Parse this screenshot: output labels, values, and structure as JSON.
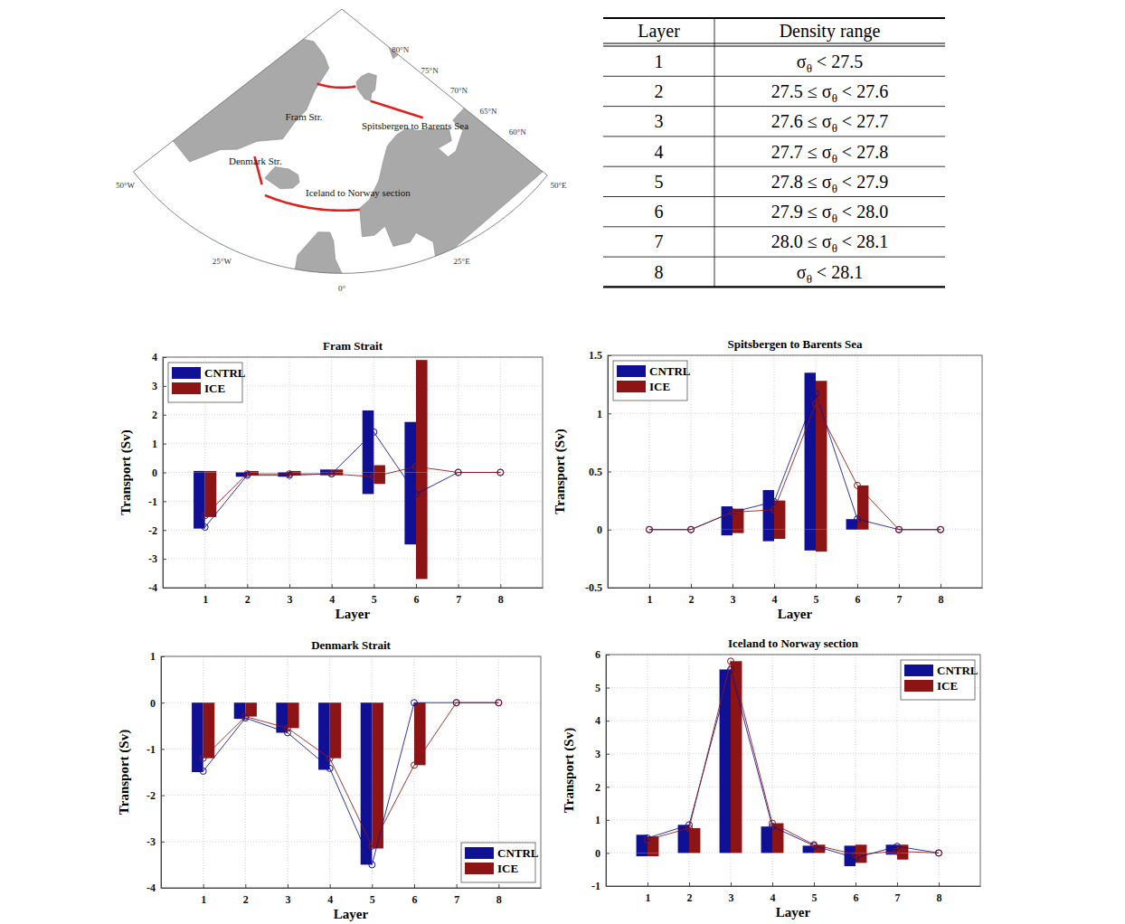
{
  "map": {
    "sections": [
      "Fram Str.",
      "Spitsbergen to Barents Sea",
      "Denmark Str.",
      "Iceland to Norway section"
    ],
    "lat_ticks": [
      {
        "value": 80,
        "label": "80°N"
      },
      {
        "value": 75,
        "label": "75°N"
      },
      {
        "value": 70,
        "label": "70°N"
      },
      {
        "value": 65,
        "label": "65°N"
      },
      {
        "value": 60,
        "label": "60°N"
      }
    ],
    "lon_ticks": [
      {
        "value": -50,
        "label": "50°W"
      },
      {
        "value": -25,
        "label": "25°W"
      },
      {
        "value": 0,
        "label": "0°"
      },
      {
        "value": 25,
        "label": "25°E"
      },
      {
        "value": 50,
        "label": "50°E"
      }
    ]
  },
  "table": {
    "header": [
      "Layer",
      "Density range"
    ],
    "rows": [
      [
        "1",
        "σθ < 27.5"
      ],
      [
        "2",
        "27.5 ≤ σθ < 27.6"
      ],
      [
        "3",
        "27.6 ≤ σθ < 27.7"
      ],
      [
        "4",
        "27.7 ≤ σθ < 27.8"
      ],
      [
        "5",
        "27.8 ≤ σθ < 27.9"
      ],
      [
        "6",
        "27.9 ≤ σθ < 28.0"
      ],
      [
        "7",
        "28.0 ≤ σθ < 28.1"
      ],
      [
        "8",
        "σθ < 28.1"
      ]
    ]
  },
  "chart_data": [
    {
      "type": "bar",
      "title": "Fram Strait",
      "xlabel": "Layer",
      "ylabel": "Transport (Sv)",
      "x": [
        1,
        2,
        3,
        4,
        5,
        6,
        7,
        8
      ],
      "xlim": [
        0,
        9
      ],
      "xticks": [
        1,
        2,
        3,
        4,
        5,
        6,
        7,
        8
      ],
      "ylim": [
        -4,
        4
      ],
      "yticks": [
        -4,
        -3,
        -2,
        -1,
        0,
        1,
        2,
        3,
        4
      ],
      "grid": true,
      "legend": "top-left",
      "series": [
        {
          "name": "CNTRL",
          "color": "#101094",
          "marker": "circle",
          "positive": [
            0.05,
            0,
            0,
            0.1,
            2.15,
            1.75,
            0,
            0
          ],
          "negative": [
            -1.95,
            -0.15,
            -0.15,
            -0.1,
            -0.75,
            -2.5,
            0,
            0
          ],
          "values": [
            -1.9,
            -0.1,
            -0.1,
            -0.05,
            1.4,
            -0.75,
            0,
            0
          ]
        },
        {
          "name": "ICE",
          "color": "#8c1414",
          "marker": "circle",
          "positive": [
            0.05,
            0.05,
            0.05,
            0.1,
            0.25,
            3.9,
            0,
            0
          ],
          "negative": [
            -1.55,
            -0.1,
            -0.1,
            -0.1,
            -0.4,
            -3.7,
            0,
            0
          ],
          "values": [
            -1.5,
            -0.05,
            -0.05,
            -0.05,
            -0.15,
            0.2,
            0,
            0
          ]
        }
      ]
    },
    {
      "type": "bar",
      "title": "Spitsbergen to Barents Sea",
      "xlabel": "Layer",
      "ylabel": "Transport (Sv)",
      "x": [
        1,
        2,
        3,
        4,
        5,
        6,
        7,
        8
      ],
      "xlim": [
        0,
        9
      ],
      "xticks": [
        1,
        2,
        3,
        4,
        5,
        6,
        7,
        8
      ],
      "ylim": [
        -0.5,
        1.5
      ],
      "yticks": [
        -0.5,
        0,
        0.5,
        1,
        1.5
      ],
      "grid": true,
      "legend": "top-left",
      "series": [
        {
          "name": "CNTRL",
          "color": "#101094",
          "marker": "circle",
          "positive": [
            0,
            0,
            0.2,
            0.34,
            1.35,
            0.09,
            0,
            0
          ],
          "negative": [
            0,
            0,
            -0.05,
            -0.1,
            -0.18,
            0,
            0,
            0
          ],
          "values": [
            0,
            0,
            0.15,
            0.24,
            1.17,
            0.09,
            0,
            0
          ]
        },
        {
          "name": "ICE",
          "color": "#8c1414",
          "marker": "circle",
          "positive": [
            0,
            0,
            0.18,
            0.25,
            1.28,
            0.38,
            0,
            0
          ],
          "negative": [
            0,
            0,
            -0.03,
            -0.08,
            -0.19,
            0,
            0,
            0
          ],
          "values": [
            0,
            0,
            0.15,
            0.17,
            1.08,
            0.38,
            0,
            0
          ]
        }
      ]
    },
    {
      "type": "bar",
      "title": "Denmark Strait",
      "xlabel": "Layer",
      "ylabel": "Transport (Sv)",
      "x": [
        1,
        2,
        3,
        4,
        5,
        6,
        7,
        8
      ],
      "xlim": [
        0,
        9
      ],
      "xticks": [
        1,
        2,
        3,
        4,
        5,
        6,
        7,
        8
      ],
      "ylim": [
        -4,
        1
      ],
      "yticks": [
        -4,
        -3,
        -2,
        -1,
        0,
        1
      ],
      "grid": true,
      "legend": "bottom-right",
      "series": [
        {
          "name": "CNTRL",
          "color": "#101094",
          "marker": "circle",
          "positive": [
            0,
            0,
            0,
            0,
            0,
            0,
            0,
            0
          ],
          "negative": [
            -1.5,
            -0.35,
            -0.65,
            -1.45,
            -3.5,
            0,
            0,
            0
          ],
          "values": [
            -1.48,
            -0.33,
            -0.65,
            -1.42,
            -3.5,
            0,
            0,
            0
          ]
        },
        {
          "name": "ICE",
          "color": "#8c1414",
          "marker": "circle",
          "positive": [
            0,
            0,
            0,
            0,
            0,
            0,
            0,
            0
          ],
          "negative": [
            -1.2,
            -0.3,
            -0.55,
            -1.2,
            -3.15,
            -1.35,
            0,
            0
          ],
          "values": [
            -1.2,
            -0.3,
            -0.55,
            -1.2,
            -3.1,
            -1.35,
            0,
            0
          ]
        }
      ]
    },
    {
      "type": "bar",
      "title": "Iceland to Norway section",
      "xlabel": "Layer",
      "ylabel": "Transport (Sv)",
      "x": [
        1,
        2,
        3,
        4,
        5,
        6,
        7,
        8
      ],
      "xlim": [
        0,
        9
      ],
      "xticks": [
        1,
        2,
        3,
        4,
        5,
        6,
        7,
        8
      ],
      "ylim": [
        -1,
        6
      ],
      "yticks": [
        -1,
        0,
        1,
        2,
        3,
        4,
        5,
        6
      ],
      "grid": true,
      "legend": "top-right",
      "series": [
        {
          "name": "CNTRL",
          "color": "#101094",
          "marker": "circle",
          "positive": [
            0.55,
            0.85,
            5.55,
            0.8,
            0.22,
            0.22,
            0.25,
            0
          ],
          "negative": [
            -0.1,
            0,
            0,
            0,
            0,
            -0.4,
            -0.05,
            0
          ],
          "values": [
            0.45,
            0.85,
            5.55,
            0.8,
            0.22,
            -0.15,
            0.2,
            0
          ]
        },
        {
          "name": "ICE",
          "color": "#8c1414",
          "marker": "circle",
          "positive": [
            0.5,
            0.75,
            5.8,
            0.9,
            0.25,
            0.25,
            0.25,
            0
          ],
          "negative": [
            -0.1,
            0,
            0,
            0,
            0,
            -0.3,
            -0.2,
            0
          ],
          "values": [
            0.4,
            0.75,
            5.8,
            0.9,
            0.25,
            -0.05,
            0.05,
            0
          ]
        }
      ]
    }
  ]
}
